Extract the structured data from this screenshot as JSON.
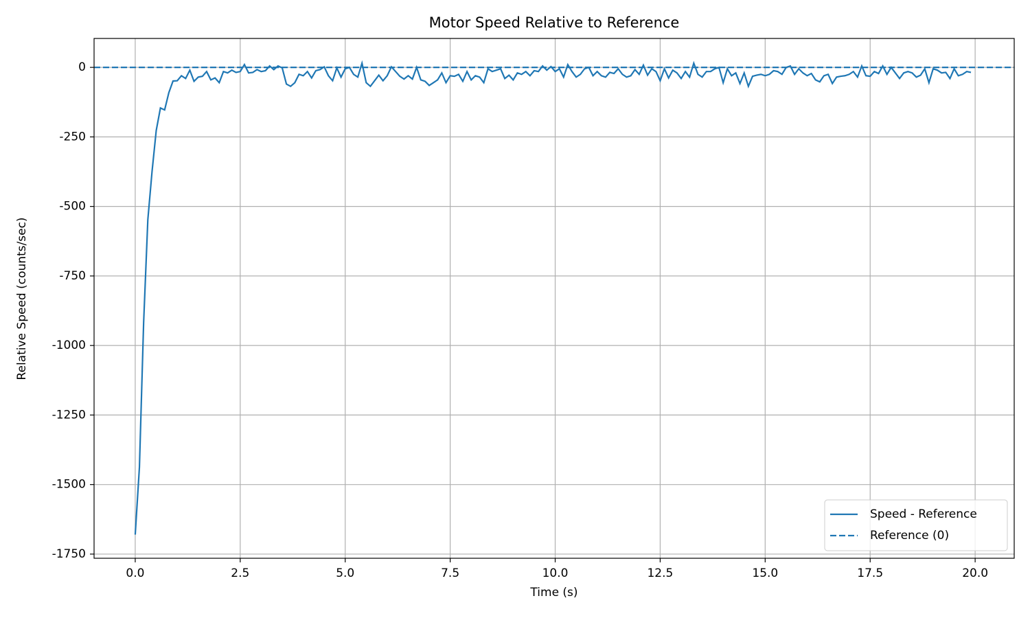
{
  "chart_data": {
    "type": "line",
    "title": "Motor Speed Relative to Reference",
    "xlabel": "Time (s)",
    "ylabel": "Relative Speed (counts/sec)",
    "xlim": [
      -0.98,
      20.93
    ],
    "ylim": [
      -1765,
      104
    ],
    "xticks": [
      {
        "value": 0,
        "label": "0.0"
      },
      2.5,
      {
        "value": 5,
        "label": "5.0"
      },
      7.5,
      {
        "value": 10,
        "label": "10.0"
      },
      12.5,
      {
        "value": 15,
        "label": "15.0"
      },
      17.5,
      {
        "value": 20,
        "label": "20.0"
      }
    ],
    "yticks": [
      -1750,
      -1500,
      -1250,
      -1000,
      -750,
      -500,
      -250,
      0
    ],
    "grid": true,
    "legend": "lower right",
    "x": [
      0,
      0.1,
      0.2,
      0.3,
      0.4,
      0.5,
      0.6,
      0.7,
      0.8,
      0.9,
      1,
      1.1,
      1.2,
      1.3,
      1.4,
      1.5,
      1.6,
      1.7,
      1.8,
      1.9,
      2,
      2.1,
      2.2,
      2.3,
      2.4,
      2.5,
      2.6,
      2.7,
      2.8,
      2.9,
      3,
      3.1,
      3.2,
      3.3,
      3.4,
      3.5,
      3.6,
      3.7,
      3.8,
      3.9,
      4,
      4.1,
      4.2,
      4.3,
      4.4,
      4.5,
      4.6,
      4.7,
      4.8,
      4.9,
      5,
      5.1,
      5.2,
      5.3,
      5.4,
      5.5,
      5.6,
      5.7,
      5.8,
      5.9,
      6,
      6.1,
      6.2,
      6.3,
      6.4,
      6.5,
      6.6,
      6.7,
      6.8,
      6.9,
      7,
      7.1,
      7.2,
      7.3,
      7.4,
      7.5,
      7.6,
      7.7,
      7.8,
      7.9,
      8,
      8.1,
      8.2,
      8.3,
      8.4,
      8.5,
      8.6,
      8.7,
      8.8,
      8.9,
      9,
      9.1,
      9.2,
      9.3,
      9.4,
      9.5,
      9.6,
      9.7,
      9.8,
      9.9,
      10,
      10.1,
      10.2,
      10.3,
      10.4,
      10.5,
      10.6,
      10.7,
      10.8,
      10.9,
      11,
      11.1,
      11.2,
      11.3,
      11.4,
      11.5,
      11.6,
      11.7,
      11.8,
      11.9,
      12,
      12.1,
      12.2,
      12.3,
      12.4,
      12.5,
      12.6,
      12.7,
      12.8,
      12.9,
      13,
      13.1,
      13.2,
      13.3,
      13.4,
      13.5,
      13.6,
      13.7,
      13.8,
      13.9,
      14,
      14.1,
      14.2,
      14.3,
      14.4,
      14.5,
      14.6,
      14.7,
      14.8,
      14.9,
      15,
      15.1,
      15.2,
      15.3,
      15.4,
      15.5,
      15.6,
      15.7,
      15.8,
      15.9,
      16,
      16.1,
      16.2,
      16.3,
      16.4,
      16.5,
      16.6,
      16.7,
      16.8,
      16.9,
      17,
      17.1,
      17.2,
      17.3,
      17.4,
      17.5,
      17.6,
      17.7,
      17.8,
      17.9,
      18,
      18.1,
      18.2,
      18.3,
      18.4,
      18.5,
      18.6,
      18.7,
      18.8,
      18.9,
      19,
      19.1,
      19.2,
      19.3,
      19.4,
      19.5,
      19.6,
      19.7,
      19.8,
      19.9
    ],
    "series": [
      {
        "name": "Speed - Reference",
        "color": "#1f77b4",
        "style": "solid",
        "values": [
          -1680,
          -1437,
          -918,
          -548,
          -375,
          -227,
          -146,
          -153,
          -91,
          -49,
          -48,
          -30,
          -40,
          -10,
          -50,
          -35,
          -32,
          -15,
          -45,
          -38,
          -55,
          -15,
          -20,
          -10,
          -18,
          -15,
          10,
          -20,
          -18,
          -8,
          -15,
          -12,
          5,
          -8,
          5,
          -2,
          -60,
          -68,
          -55,
          -25,
          -30,
          -15,
          -38,
          -12,
          -8,
          2,
          -30,
          -48,
          -2,
          -35,
          -5,
          0,
          -25,
          -35,
          15,
          -55,
          -68,
          -48,
          -28,
          -48,
          -30,
          2,
          -15,
          -32,
          -42,
          -30,
          -42,
          0,
          -45,
          -50,
          -65,
          -55,
          -45,
          -20,
          -55,
          -30,
          -32,
          -25,
          -50,
          -15,
          -45,
          -30,
          -35,
          -55,
          -5,
          -15,
          -10,
          -5,
          -40,
          -28,
          -45,
          -20,
          -25,
          -15,
          -30,
          -12,
          -15,
          5,
          -10,
          3,
          -15,
          -5,
          -35,
          10,
          -15,
          -35,
          -25,
          -5,
          0,
          -30,
          -15,
          -30,
          -35,
          -18,
          -22,
          -5,
          -25,
          -35,
          -30,
          -8,
          -25,
          8,
          -28,
          -5,
          -15,
          -48,
          -5,
          -38,
          -10,
          -20,
          -40,
          -15,
          -35,
          15,
          -25,
          -35,
          -15,
          -15,
          -5,
          0,
          -55,
          -5,
          -30,
          -20,
          -58,
          -20,
          -68,
          -32,
          -28,
          -25,
          -30,
          -25,
          -12,
          -15,
          -25,
          0,
          5,
          -25,
          -5,
          -20,
          -30,
          -22,
          -45,
          -52,
          -30,
          -25,
          -58,
          -35,
          -32,
          -30,
          -25,
          -15,
          -35,
          5,
          -30,
          -32,
          -15,
          -22,
          5,
          -25,
          0,
          -20,
          -40,
          -20,
          -15,
          -20,
          -35,
          -28,
          -5,
          -55,
          -5,
          -10,
          -20,
          -18,
          -40,
          -5,
          -30,
          -25,
          -15,
          -18
        ]
      }
    ],
    "reference": {
      "name": "Reference (0)",
      "color": "#1f77b4",
      "style": "dashed",
      "value": 0
    }
  }
}
